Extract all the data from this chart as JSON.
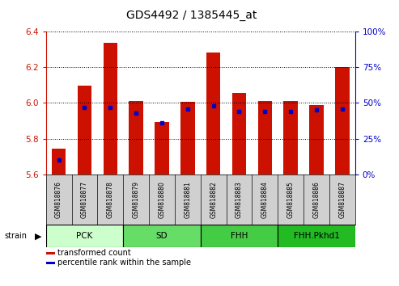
{
  "title": "GDS4492 / 1385445_at",
  "samples": [
    "GSM818876",
    "GSM818877",
    "GSM818878",
    "GSM818879",
    "GSM818880",
    "GSM818881",
    "GSM818882",
    "GSM818883",
    "GSM818884",
    "GSM818885",
    "GSM818886",
    "GSM818887"
  ],
  "red_values": [
    5.745,
    6.095,
    6.335,
    6.01,
    5.895,
    6.005,
    6.28,
    6.055,
    6.01,
    6.01,
    5.99,
    6.2
  ],
  "blue_percentiles": [
    10,
    47,
    47,
    43,
    36,
    46,
    48,
    44,
    44,
    44,
    45,
    46
  ],
  "ylim_left": [
    5.6,
    6.4
  ],
  "ylim_right": [
    0,
    100
  ],
  "yticks_left": [
    5.6,
    5.8,
    6.0,
    6.2,
    6.4
  ],
  "yticks_right": [
    0,
    25,
    50,
    75,
    100
  ],
  "groups": [
    {
      "label": "PCK",
      "start": 0,
      "end": 3,
      "color": "#ccffcc"
    },
    {
      "label": "SD",
      "start": 3,
      "end": 6,
      "color": "#66dd66"
    },
    {
      "label": "FHH",
      "start": 6,
      "end": 9,
      "color": "#44cc44"
    },
    {
      "label": "FHH.Pkhd1",
      "start": 9,
      "end": 12,
      "color": "#22bb22"
    }
  ],
  "bar_color": "#cc1100",
  "dot_color": "#0000cc",
  "bar_bottom": 5.6,
  "tick_color_left": "#cc1100",
  "tick_color_right": "#0000cc",
  "bg_color": "#ffffff",
  "bar_width": 0.55,
  "legend_items": [
    "transformed count",
    "percentile rank within the sample"
  ],
  "group_row_color": "#d0d0d0",
  "sample_box_color": "#d0d0d0"
}
